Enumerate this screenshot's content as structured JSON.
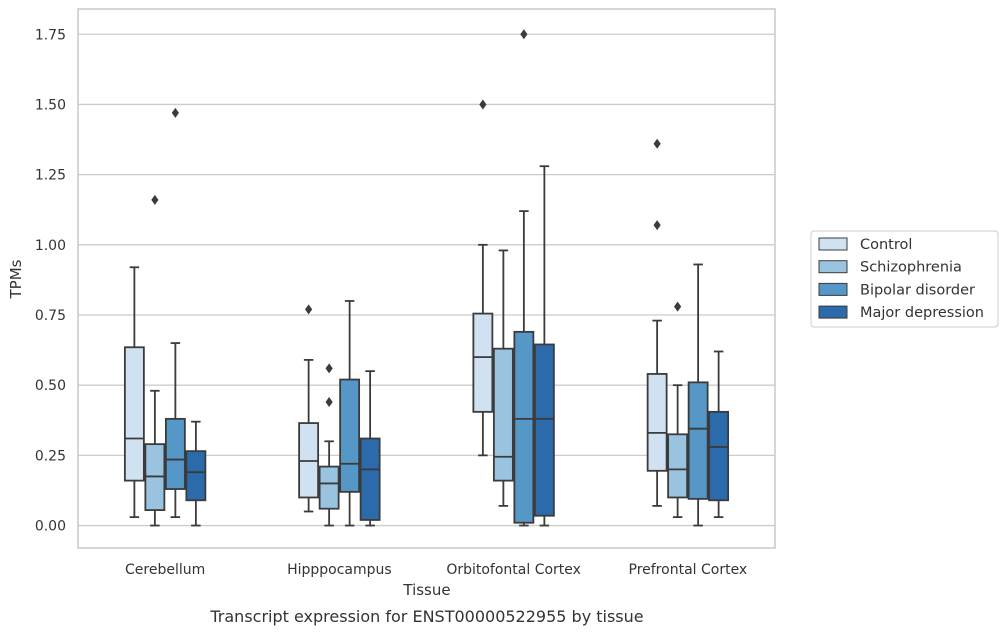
{
  "chart_data": {
    "type": "box",
    "title": "",
    "caption": "Transcript expression for ENST00000522955 by tissue",
    "xlabel": "Tissue",
    "ylabel": "TPMs",
    "ylim": [
      -0.08,
      1.84
    ],
    "yticks": [
      "0.00",
      "0.25",
      "0.50",
      "0.75",
      "1.00",
      "1.25",
      "1.50",
      "1.75"
    ],
    "categories": [
      "Cerebellum",
      "Hipppocampus",
      "Orbitofontal Cortex",
      "Prefrontal Cortex"
    ],
    "grid": "horizontal",
    "legend_position": "right",
    "series": [
      {
        "name": "Control",
        "color": "#d0e1f1",
        "boxes": [
          {
            "whisker_low": 0.03,
            "q1": 0.16,
            "median": 0.31,
            "q3": 0.635,
            "whisker_high": 0.92,
            "outliers": []
          },
          {
            "whisker_low": 0.05,
            "q1": 0.1,
            "median": 0.23,
            "q3": 0.365,
            "whisker_high": 0.59,
            "outliers": [
              0.77
            ]
          },
          {
            "whisker_low": 0.25,
            "q1": 0.405,
            "median": 0.6,
            "q3": 0.755,
            "whisker_high": 1.0,
            "outliers": [
              1.5
            ]
          },
          {
            "whisker_low": 0.07,
            "q1": 0.195,
            "median": 0.33,
            "q3": 0.54,
            "whisker_high": 0.73,
            "outliers": [
              1.07,
              1.36
            ]
          }
        ]
      },
      {
        "name": "Schizophrenia",
        "color": "#99c3de",
        "boxes": [
          {
            "whisker_low": 0.0,
            "q1": 0.055,
            "median": 0.175,
            "q3": 0.29,
            "whisker_high": 0.48,
            "outliers": [
              1.16
            ]
          },
          {
            "whisker_low": 0.0,
            "q1": 0.06,
            "median": 0.15,
            "q3": 0.21,
            "whisker_high": 0.3,
            "outliers": [
              0.44,
              0.56
            ]
          },
          {
            "whisker_low": 0.07,
            "q1": 0.16,
            "median": 0.245,
            "q3": 0.63,
            "whisker_high": 0.98,
            "outliers": []
          },
          {
            "whisker_low": 0.03,
            "q1": 0.1,
            "median": 0.2,
            "q3": 0.325,
            "whisker_high": 0.5,
            "outliers": [
              0.78
            ]
          }
        ]
      },
      {
        "name": "Bipolar disorder",
        "color": "#5597c6",
        "boxes": [
          {
            "whisker_low": 0.03,
            "q1": 0.13,
            "median": 0.235,
            "q3": 0.38,
            "whisker_high": 0.65,
            "outliers": [
              1.47
            ]
          },
          {
            "whisker_low": 0.0,
            "q1": 0.12,
            "median": 0.22,
            "q3": 0.52,
            "whisker_high": 0.8,
            "outliers": []
          },
          {
            "whisker_low": 0.0,
            "q1": 0.01,
            "median": 0.38,
            "q3": 0.69,
            "whisker_high": 1.12,
            "outliers": [
              1.75
            ]
          },
          {
            "whisker_low": 0.0,
            "q1": 0.095,
            "median": 0.345,
            "q3": 0.51,
            "whisker_high": 0.93,
            "outliers": []
          }
        ]
      },
      {
        "name": "Major depression",
        "color": "#2b6aab",
        "boxes": [
          {
            "whisker_low": 0.0,
            "q1": 0.09,
            "median": 0.19,
            "q3": 0.265,
            "whisker_high": 0.37,
            "outliers": []
          },
          {
            "whisker_low": 0.0,
            "q1": 0.02,
            "median": 0.2,
            "q3": 0.31,
            "whisker_high": 0.55,
            "outliers": []
          },
          {
            "whisker_low": 0.0,
            "q1": 0.035,
            "median": 0.38,
            "q3": 0.645,
            "whisker_high": 1.28,
            "outliers": []
          },
          {
            "whisker_low": 0.03,
            "q1": 0.09,
            "median": 0.28,
            "q3": 0.405,
            "whisker_high": 0.62,
            "outliers": []
          }
        ]
      }
    ]
  }
}
